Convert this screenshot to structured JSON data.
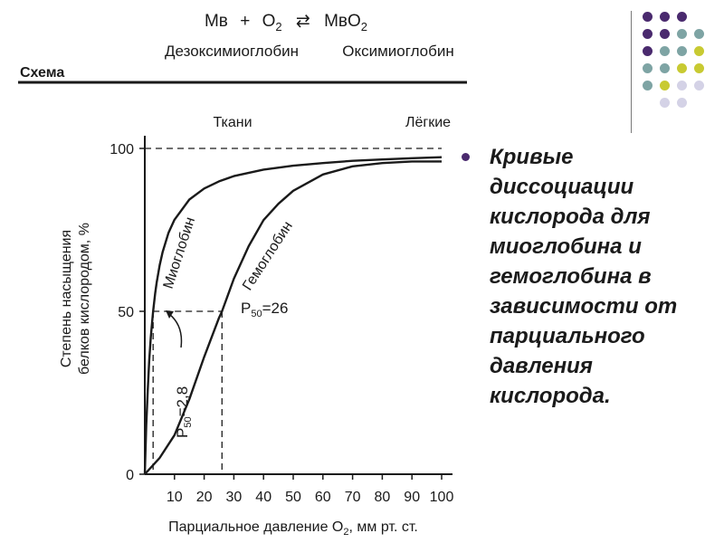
{
  "header": {
    "equation": {
      "left": "Мв",
      "plus": "+",
      "o2_base": "O",
      "o2_sub": "2",
      "arrow": "⇄",
      "right_base": "MвO",
      "right_sub": "2"
    },
    "left_name": "Дезоксимиоглобин",
    "right_name": "Оксимиоглобин",
    "scheme_label": "Схема"
  },
  "chart_data": {
    "type": "line",
    "top_labels": [
      "Ткани",
      "Лёгкие"
    ],
    "xlabel_base": "Парциальное давление O",
    "xlabel_sub": "2",
    "xlabel_tail": ", мм рт. ст.",
    "ylabel_lines": [
      "Степень насыщения",
      "белков кислородом, %"
    ],
    "xlim": [
      0,
      100
    ],
    "ylim": [
      0,
      100
    ],
    "x_ticks": [
      10,
      20,
      30,
      40,
      50,
      60,
      70,
      80,
      90,
      100
    ],
    "y_ticks": [
      0,
      50,
      100
    ],
    "series": [
      {
        "name": "Миоглобин",
        "x": [
          0,
          0.5,
          1,
          1.5,
          2,
          2.5,
          2.8,
          3.5,
          4,
          5,
          6,
          8,
          10,
          15,
          20,
          25,
          30,
          40,
          50,
          60,
          70,
          80,
          90,
          100
        ],
        "y": [
          0,
          15,
          26,
          35,
          42,
          47,
          50,
          55.6,
          58.8,
          64.1,
          68.2,
          74.1,
          78.1,
          84.3,
          87.7,
          89.9,
          91.5,
          93.5,
          94.7,
          95.5,
          96.2,
          96.6,
          97.0,
          97.3
        ]
      },
      {
        "name": "Гемоглобин",
        "x": [
          0,
          5,
          10,
          15,
          20,
          25,
          26,
          30,
          35,
          40,
          45,
          50,
          60,
          70,
          80,
          90,
          100
        ],
        "y": [
          0,
          5,
          12,
          23,
          36,
          48,
          50,
          60,
          70,
          78,
          83,
          87,
          92,
          94.5,
          95.5,
          96,
          96
        ]
      }
    ],
    "annotations": [
      {
        "label_base": "P",
        "label_sub": "50",
        "label_tail": "=2,8",
        "x": 2.8,
        "y": 50
      },
      {
        "label_base": "P",
        "label_sub": "50",
        "label_tail": "=26",
        "x": 26,
        "y": 50
      }
    ],
    "reference_y": 100
  },
  "caption": {
    "lines": [
      "Кривые",
      "диссоциации",
      "кислорода для",
      "миоглобина и",
      "гемоглобина в",
      "зависимости от",
      "парциального",
      "давления",
      "кислорода."
    ]
  },
  "colors": {
    "purple": "#4a2a6e",
    "teal": "#7ea4a4",
    "yellow": "#c8ca32",
    "lavender": "#d4d2e6",
    "bullet": "#4a2a6e",
    "ink": "#1a1a1a"
  }
}
